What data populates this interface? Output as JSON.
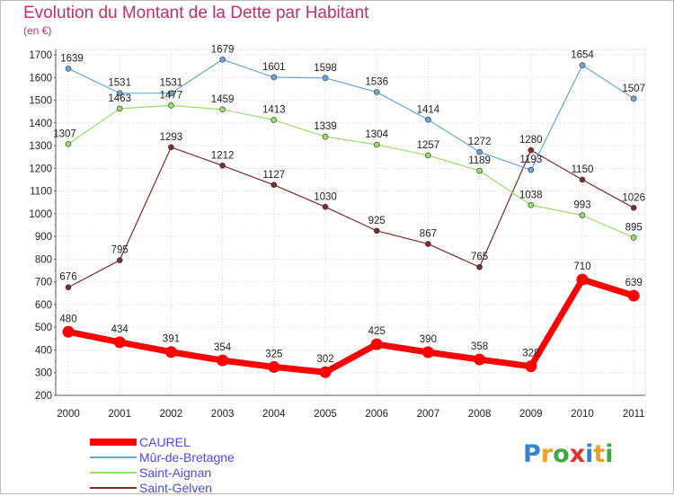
{
  "chart_data": {
    "type": "line",
    "title": "Evolution du Montant de la Dette par Habitant",
    "subtitle": "(en €)",
    "x": [
      "2000",
      "2001",
      "2002",
      "2003",
      "2004",
      "2005",
      "2006",
      "2007",
      "2008",
      "2009",
      "2010",
      "2011"
    ],
    "ylim": [
      200,
      1700
    ],
    "yticks": [
      "200",
      "300",
      "400",
      "500",
      "600",
      "700",
      "800",
      "900",
      "1000",
      "1100",
      "1200",
      "1300",
      "1400",
      "1500",
      "1600",
      "1700"
    ],
    "grid": true,
    "legend_position": "bottom-left",
    "series": [
      {
        "name": "CAUREL",
        "color": "#ff0000",
        "values": [
          480,
          434,
          391,
          354,
          325,
          302,
          425,
          390,
          358,
          328,
          710,
          639
        ]
      },
      {
        "name": "Mûr-de-Bretagne",
        "color": "#6aa6d6",
        "values": [
          1639,
          1531,
          1531,
          1679,
          1601,
          1598,
          1536,
          1414,
          1272,
          1193,
          1654,
          1507
        ]
      },
      {
        "name": "Saint-Aignan",
        "color": "#99dd66",
        "values": [
          1307,
          1463,
          1477,
          1459,
          1413,
          1339,
          1304,
          1257,
          1189,
          1038,
          993,
          895
        ]
      },
      {
        "name": "Saint-Gelven",
        "color": "#7a2a2a",
        "values": [
          676,
          795,
          1293,
          1212,
          1127,
          1030,
          925,
          867,
          765,
          1280,
          1150,
          1026
        ]
      }
    ]
  },
  "logo": {
    "text": "Proxiti",
    "letters": [
      "P",
      "r",
      "o",
      "x",
      "i",
      "t",
      "i"
    ],
    "colors": [
      "#2f83cf",
      "#f0a020",
      "#3fa83f",
      "#e03030",
      "#2f83cf",
      "#f0a020",
      "#3fa83f"
    ]
  }
}
